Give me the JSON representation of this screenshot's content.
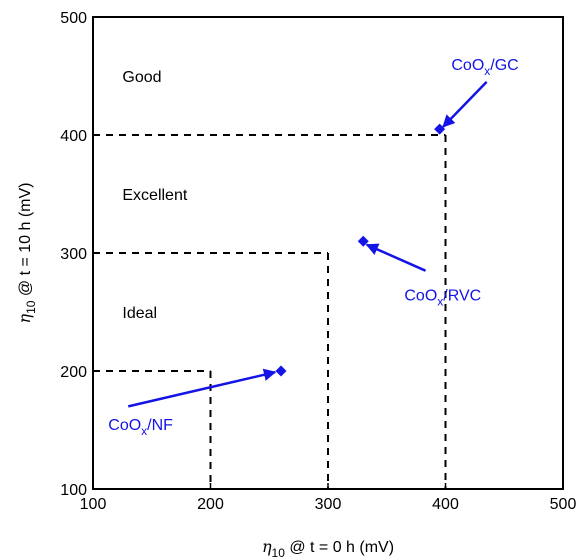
{
  "chart_data": {
    "type": "scatter",
    "xlabel": {
      "symbol": "η",
      "sub": "10",
      "rest": " @ t = 0 h (mV)"
    },
    "ylabel": {
      "symbol": "η",
      "sub": "10",
      "rest": " @ t = 10 h (mV)"
    },
    "xlim": [
      100,
      500
    ],
    "ylim": [
      100,
      500
    ],
    "xticks": [
      100,
      200,
      300,
      400,
      500
    ],
    "yticks": [
      100,
      200,
      300,
      400,
      500
    ],
    "grid": false,
    "thresholds": [
      200,
      300,
      400
    ],
    "regions": [
      {
        "label": "Ideal",
        "x": 125,
        "y": 250
      },
      {
        "label": "Excellent",
        "x": 125,
        "y": 350
      },
      {
        "label": "Good",
        "x": 125,
        "y": 450
      }
    ],
    "points": [
      {
        "id": "nf",
        "x": 260,
        "y": 200
      },
      {
        "id": "rvc",
        "x": 330,
        "y": 310
      },
      {
        "id": "gc",
        "x": 395,
        "y": 405
      }
    ],
    "annotations": [
      {
        "id": "nf",
        "base": "CoO",
        "sub": "x",
        "suffix": "/NF",
        "text_x": 113,
        "text_y": 155,
        "arrow_from": [
          130,
          170
        ],
        "arrow_to": [
          255,
          199
        ]
      },
      {
        "id": "rvc",
        "base": "CoO",
        "sub": "x",
        "suffix": "/RVC",
        "text_x": 365,
        "text_y": 265,
        "arrow_from": [
          383,
          285
        ],
        "arrow_to": [
          333,
          307
        ]
      },
      {
        "id": "gc",
        "base": "CoO",
        "sub": "x",
        "suffix": "/GC",
        "text_x": 405,
        "text_y": 460,
        "arrow_from": [
          435,
          445
        ],
        "arrow_to": [
          398,
          407
        ]
      }
    ],
    "colors": {
      "points": "#1414e6",
      "lines": "#000000"
    }
  }
}
